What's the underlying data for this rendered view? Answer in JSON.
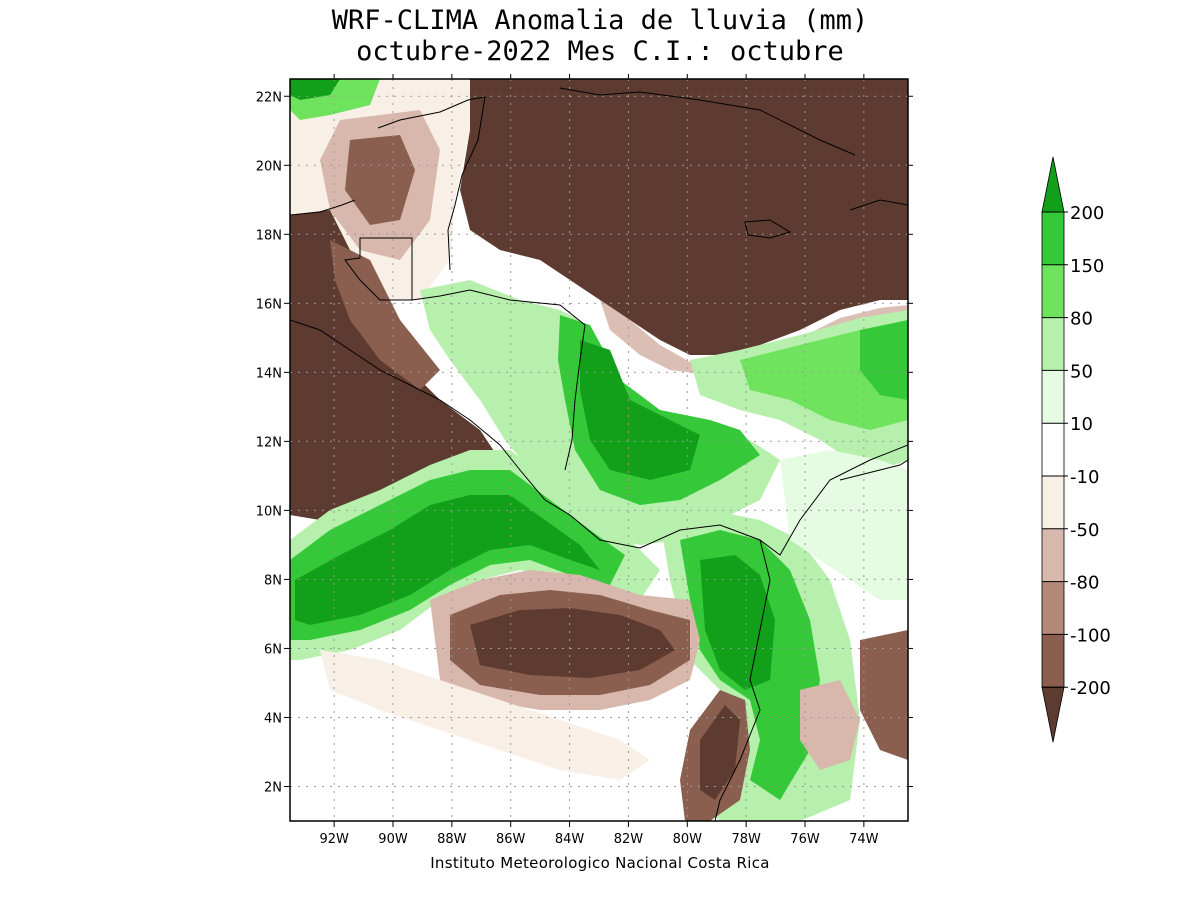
{
  "header": {
    "title_line1": "WRF-CLIMA Anomalia de lluvia (mm)",
    "title_line2": "octubre-2022 Mes C.I.: octubre"
  },
  "footer": {
    "credit": "Instituto Meteorologico Nacional Costa Rica"
  },
  "map": {
    "lon_range": [
      -93.5,
      -72.5
    ],
    "lat_range": [
      1,
      22.5
    ],
    "lat_ticks": [
      {
        "value": 22,
        "label": "22N"
      },
      {
        "value": 20,
        "label": "20N"
      },
      {
        "value": 18,
        "label": "18N"
      },
      {
        "value": 16,
        "label": "16N"
      },
      {
        "value": 14,
        "label": "14N"
      },
      {
        "value": 12,
        "label": "12N"
      },
      {
        "value": 10,
        "label": "10N"
      },
      {
        "value": 8,
        "label": "8N"
      },
      {
        "value": 6,
        "label": "6N"
      },
      {
        "value": 4,
        "label": "4N"
      },
      {
        "value": 2,
        "label": "2N"
      }
    ],
    "lon_ticks": [
      {
        "value": -92,
        "label": "92W"
      },
      {
        "value": -90,
        "label": "90W"
      },
      {
        "value": -88,
        "label": "88W"
      },
      {
        "value": -86,
        "label": "86W"
      },
      {
        "value": -84,
        "label": "84W"
      },
      {
        "value": -82,
        "label": "82W"
      },
      {
        "value": -80,
        "label": "80W"
      },
      {
        "value": -78,
        "label": "78W"
      },
      {
        "value": -76,
        "label": "76W"
      },
      {
        "value": -74,
        "label": "74W"
      }
    ],
    "grid": true,
    "colors": {
      "strong_dry": "#5e3b30",
      "mod_dry": "#8a5f50",
      "dry": "#b3897a",
      "light_dry": "#d8b8ac",
      "very_light_dry": "#f8efe6",
      "neutral": "#ffffff",
      "light_wet": "#e5fbe2",
      "wet": "#b6f0ac",
      "mod_wet": "#6fe35d",
      "strong_wet": "#35c93a",
      "very_strong_wet": "#12a01a"
    }
  },
  "colorbar": {
    "levels": [
      {
        "label": "200",
        "value": 200
      },
      {
        "label": "150",
        "value": 150
      },
      {
        "label": "80",
        "value": 80
      },
      {
        "label": "50",
        "value": 50
      },
      {
        "label": "10",
        "value": 10
      },
      {
        "label": "-10",
        "value": -10
      },
      {
        "label": "-50",
        "value": -50
      },
      {
        "label": "-80",
        "value": -80
      },
      {
        "label": "-100",
        "value": -100
      },
      {
        "label": "-200",
        "value": -200
      }
    ],
    "colors": [
      "#12a01a",
      "#35c93a",
      "#6fe35d",
      "#b6f0ac",
      "#e5fbe2",
      "#ffffff",
      "#f8efe6",
      "#d8b8ac",
      "#b3897a",
      "#8a5f50",
      "#5e3b30"
    ]
  }
}
